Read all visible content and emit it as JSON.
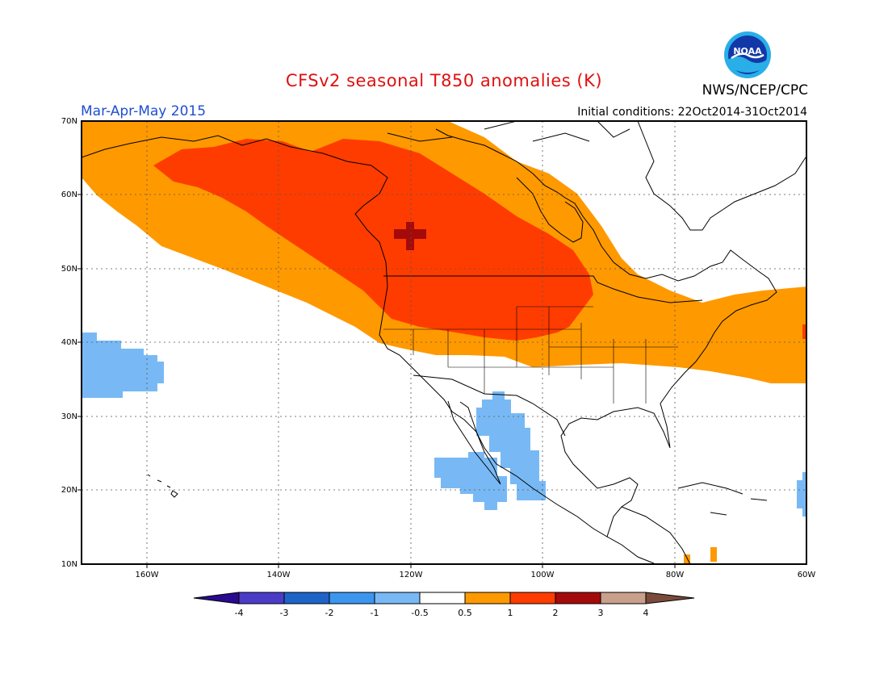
{
  "header": {
    "title": "CFSv2 seasonal T850 anomalies (K)",
    "period": "Mar-Apr-May 2015",
    "initial_conditions": "Initial conditions: 22Oct2014-31Oct2014",
    "agency": "NWS/NCEP/CPC",
    "logo_text": "NOAA"
  },
  "axes": {
    "lat_labels": [
      "70N",
      "60N",
      "50N",
      "40N",
      "30N",
      "20N",
      "10N"
    ],
    "lon_labels": [
      "160W",
      "140W",
      "120W",
      "100W",
      "80W",
      "60W"
    ]
  },
  "legend": {
    "tick_labels": [
      "-4",
      "-3",
      "-2",
      "-1",
      "-0.5",
      "0.5",
      "1",
      "2",
      "3",
      "4"
    ],
    "colors": [
      "#2a0a90",
      "#4b3cc8",
      "#1e64c8",
      "#3c96f0",
      "#78b9f5",
      "#ffffff",
      "#ff9900",
      "#ff3c00",
      "#a50a0a",
      "#c8a08c",
      "#7a4a3a"
    ]
  },
  "colors": {
    "warm_light": "#ff9900",
    "warm_mid": "#ff3c00",
    "warm_dark": "#a50a0a",
    "cool_light": "#78b9f5",
    "title_red": "#e01010",
    "period_blue": "#1f4fd0"
  }
}
